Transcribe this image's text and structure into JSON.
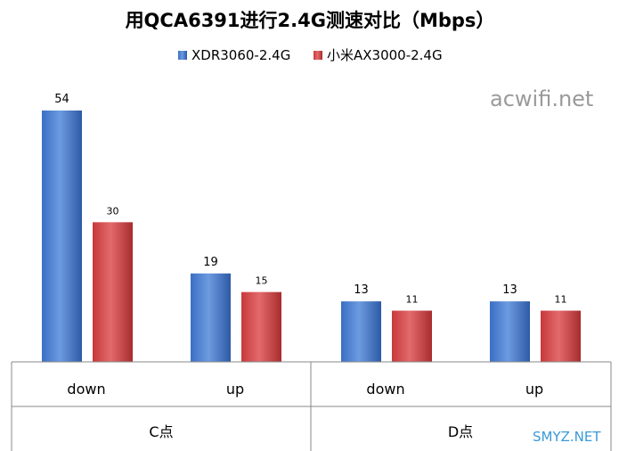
{
  "chart_data": {
    "type": "bar",
    "title": "用QCA6391进行2.4G测速对比（Mbps）",
    "groups": [
      "C点",
      "D点"
    ],
    "categories": [
      "down",
      "up",
      "down",
      "up"
    ],
    "series": [
      {
        "name": "XDR3060-2.4G",
        "values": [
          54,
          19,
          13,
          13
        ],
        "color": "#3a6fc4"
      },
      {
        "name": "小米AX3000-2.4G",
        "values": [
          30,
          15,
          11,
          11
        ],
        "color": "#c8393b"
      }
    ],
    "ylim": [
      0,
      54
    ],
    "legend_position": "top",
    "grid": false
  },
  "watermarks": {
    "top_right": "acwifi.net",
    "bottom_right": "SMYZ.NET"
  }
}
